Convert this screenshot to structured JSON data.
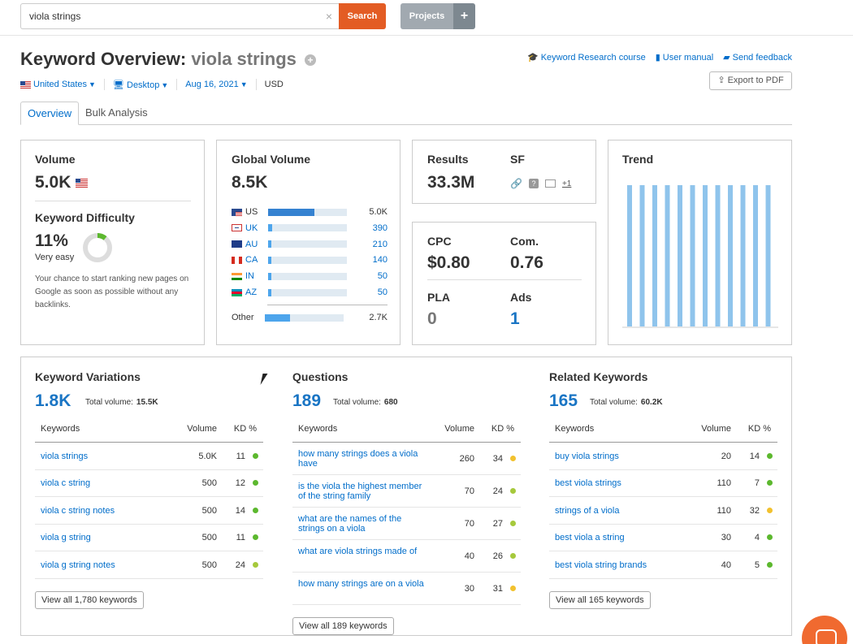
{
  "search": {
    "value": "viola strings",
    "clear": "×",
    "button": "Search"
  },
  "projects": {
    "label": "Projects",
    "plus": "+"
  },
  "header": {
    "title_prefix": "Keyword Overview:",
    "keyword": "viola strings",
    "links": [
      {
        "icon": "graduation-cap-icon",
        "label": "Keyword Research course"
      },
      {
        "icon": "book-icon",
        "label": "User manual"
      },
      {
        "icon": "speech-bubble-icon",
        "label": "Send feedback"
      }
    ],
    "export": "Export to PDF"
  },
  "filters": {
    "country": "United States",
    "device": "Desktop",
    "date": "Aug 16, 2021",
    "currency": "USD"
  },
  "tabs": [
    {
      "label": "Overview"
    },
    {
      "label": "Bulk Analysis"
    }
  ],
  "volume": {
    "title": "Volume",
    "value": "5.0K",
    "kd_title": "Keyword Difficulty",
    "kd_value": "11%",
    "kd_label": "Very easy",
    "kd_fraction": 0.11,
    "kd_desc": "Your chance to start ranking new pages on Google as soon as possible without any backlinks."
  },
  "global": {
    "title": "Global Volume",
    "value": "8.5K",
    "rows": [
      {
        "code": "US",
        "value": "5.0K",
        "fraction": 0.59,
        "flag": "us"
      },
      {
        "code": "UK",
        "value": "390",
        "fraction": 0.05,
        "flag": "uk"
      },
      {
        "code": "AU",
        "value": "210",
        "fraction": 0.03,
        "flag": "au"
      },
      {
        "code": "CA",
        "value": "140",
        "fraction": 0.02,
        "flag": "ca"
      },
      {
        "code": "IN",
        "value": "50",
        "fraction": 0.01,
        "flag": "in"
      },
      {
        "code": "AZ",
        "value": "50",
        "fraction": 0.01,
        "flag": "az"
      }
    ],
    "other": {
      "label": "Other",
      "value": "2.7K",
      "fraction": 0.32
    }
  },
  "results": {
    "title": "Results",
    "value": "33.3M",
    "sf_title": "SF",
    "sf_more": "+1"
  },
  "cpc": {
    "cpc_title": "CPC",
    "cpc_value": "$0.80",
    "com_title": "Com.",
    "com_value": "0.76",
    "pla_title": "PLA",
    "pla_value": "0",
    "ads_title": "Ads",
    "ads_value": "1"
  },
  "trend": {
    "title": "Trend",
    "bars": [
      1,
      1,
      1,
      1,
      1,
      1,
      1,
      1,
      1,
      1,
      1,
      1
    ]
  },
  "columns": {
    "keywords": "Keywords",
    "volume": "Volume",
    "kd": "KD %"
  },
  "variations": {
    "title": "Keyword Variations",
    "count": "1.8K",
    "total_label": "Total volume:",
    "total": "15.5K",
    "rows": [
      {
        "kw": "viola strings",
        "vol": "5.0K",
        "kd": "11",
        "color": "#5cb82e"
      },
      {
        "kw": "viola c string",
        "vol": "500",
        "kd": "12",
        "color": "#5cb82e"
      },
      {
        "kw": "viola c string notes",
        "vol": "500",
        "kd": "14",
        "color": "#5cb82e"
      },
      {
        "kw": "viola g string",
        "vol": "500",
        "kd": "11",
        "color": "#5cb82e"
      },
      {
        "kw": "viola g string notes",
        "vol": "500",
        "kd": "24",
        "color": "#a6c93c"
      }
    ],
    "view_all": "View all 1,780 keywords"
  },
  "questions": {
    "title": "Questions",
    "count": "189",
    "total_label": "Total volume:",
    "total": "680",
    "rows": [
      {
        "kw": "how many strings does a viola have",
        "vol": "260",
        "kd": "34",
        "color": "#f2c12e"
      },
      {
        "kw": "is the viola the highest member of the string family",
        "vol": "70",
        "kd": "24",
        "color": "#a6c93c"
      },
      {
        "kw": "what are the names of the strings on a viola",
        "vol": "70",
        "kd": "27",
        "color": "#a6c93c"
      },
      {
        "kw": "what are viola strings made of",
        "vol": "40",
        "kd": "26",
        "color": "#a6c93c"
      },
      {
        "kw": "how many strings are on a viola",
        "vol": "30",
        "kd": "31",
        "color": "#f2c12e"
      }
    ],
    "view_all": "View all 189 keywords"
  },
  "related": {
    "title": "Related Keywords",
    "count": "165",
    "total_label": "Total volume:",
    "total": "60.2K",
    "rows": [
      {
        "kw": "buy viola strings",
        "vol": "20",
        "kd": "14",
        "color": "#5cb82e"
      },
      {
        "kw": "best viola strings",
        "vol": "110",
        "kd": "7",
        "color": "#5cb82e"
      },
      {
        "kw": "strings of a viola",
        "vol": "110",
        "kd": "32",
        "color": "#f2c12e"
      },
      {
        "kw": "best viola a string",
        "vol": "30",
        "kd": "4",
        "color": "#5cb82e"
      },
      {
        "kw": "best viola string brands",
        "vol": "40",
        "kd": "5",
        "color": "#5cb82e"
      }
    ],
    "view_all": "View all 165 keywords"
  }
}
